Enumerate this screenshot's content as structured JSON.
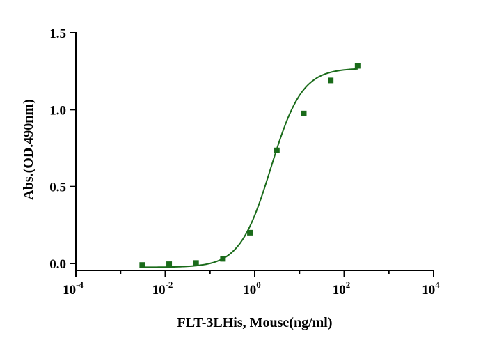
{
  "chart_data": {
    "type": "scatter",
    "title": "",
    "xlabel": "FLT-3LHis, Mouse(ng/ml)",
    "ylabel": "Abs.(OD.490nm)",
    "x_scale": "log10",
    "xlim": [
      0.0001,
      10000
    ],
    "ylim": [
      0,
      1.5
    ],
    "x_ticks": [
      {
        "base": "10",
        "exp": "-4",
        "value": 0.0001
      },
      {
        "base": "10",
        "exp": "-2",
        "value": 0.01
      },
      {
        "base": "10",
        "exp": "0",
        "value": 1
      },
      {
        "base": "10",
        "exp": "2",
        "value": 100
      },
      {
        "base": "10",
        "exp": "4",
        "value": 10000
      }
    ],
    "y_ticks": [
      {
        "label": "0.0",
        "value": 0
      },
      {
        "label": "0.5",
        "value": 0.5
      },
      {
        "label": "1.0",
        "value": 1.0
      },
      {
        "label": "1.5",
        "value": 1.5
      }
    ],
    "grid": false,
    "color": "#1a6b1a",
    "series": [
      {
        "x": [
          0.00305,
          0.0122,
          0.0488,
          0.195,
          0.781,
          3.125,
          12.5,
          50,
          200
        ],
        "y": [
          -0.01,
          -0.005,
          0.003,
          0.03,
          0.2,
          0.735,
          0.975,
          1.19,
          1.285
        ],
        "fit": {
          "bottom": -0.025,
          "top": 1.27,
          "ec50": 2.3,
          "hill": 1.25
        }
      }
    ]
  }
}
